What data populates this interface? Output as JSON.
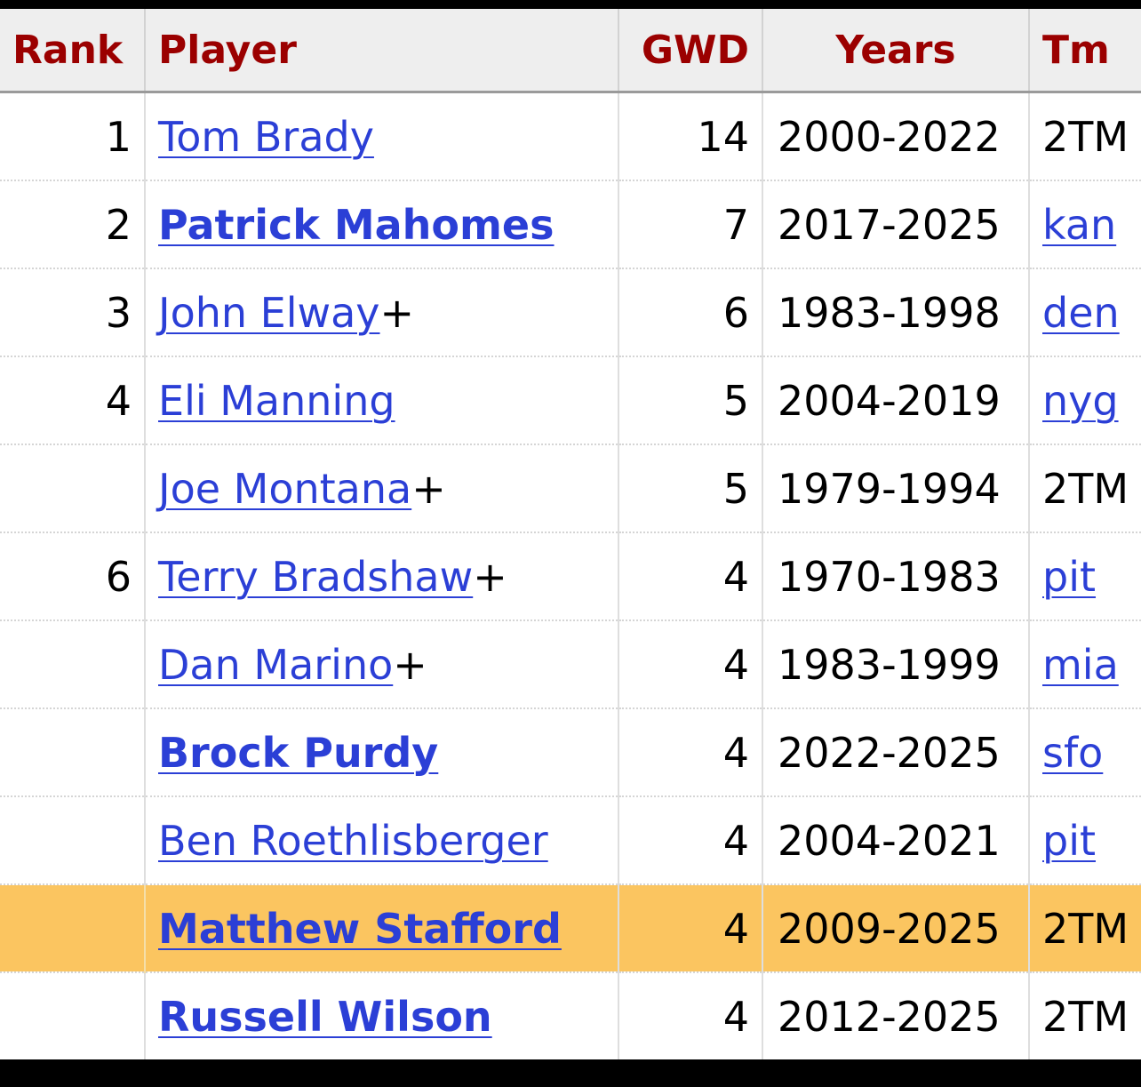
{
  "columns": {
    "rank": "Rank",
    "player": "Player",
    "gwd": "GWD",
    "years": "Years",
    "tm": "Tm"
  },
  "colors": {
    "header_text": "#9b0000",
    "link": "#2b3fd6",
    "highlight_row": "#fbc560",
    "header_bg": "#eeeeee"
  },
  "rows": [
    {
      "rank": "1",
      "player": "Tom Brady",
      "bold": false,
      "suffix": "",
      "gwd": "14",
      "years": "2000-2022",
      "tm": "2TM",
      "tm_link": false,
      "highlight": false
    },
    {
      "rank": "2",
      "player": "Patrick Mahomes",
      "bold": true,
      "suffix": "",
      "gwd": "7",
      "years": "2017-2025",
      "tm": "kan",
      "tm_link": true,
      "highlight": false
    },
    {
      "rank": "3",
      "player": "John Elway",
      "bold": false,
      "suffix": "+",
      "gwd": "6",
      "years": "1983-1998",
      "tm": "den",
      "tm_link": true,
      "highlight": false
    },
    {
      "rank": "4",
      "player": "Eli Manning",
      "bold": false,
      "suffix": "",
      "gwd": "5",
      "years": "2004-2019",
      "tm": "nyg",
      "tm_link": true,
      "highlight": false
    },
    {
      "rank": "",
      "player": "Joe Montana",
      "bold": false,
      "suffix": "+",
      "gwd": "5",
      "years": "1979-1994",
      "tm": "2TM",
      "tm_link": false,
      "highlight": false
    },
    {
      "rank": "6",
      "player": "Terry Bradshaw",
      "bold": false,
      "suffix": "+",
      "gwd": "4",
      "years": "1970-1983",
      "tm": "pit",
      "tm_link": true,
      "highlight": false
    },
    {
      "rank": "",
      "player": "Dan Marino",
      "bold": false,
      "suffix": "+",
      "gwd": "4",
      "years": "1983-1999",
      "tm": "mia",
      "tm_link": true,
      "highlight": false
    },
    {
      "rank": "",
      "player": "Brock Purdy",
      "bold": true,
      "suffix": "",
      "gwd": "4",
      "years": "2022-2025",
      "tm": "sfo",
      "tm_link": true,
      "highlight": false
    },
    {
      "rank": "",
      "player": "Ben Roethlisberger",
      "bold": false,
      "suffix": "",
      "gwd": "4",
      "years": "2004-2021",
      "tm": "pit",
      "tm_link": true,
      "highlight": false
    },
    {
      "rank": "",
      "player": "Matthew Stafford",
      "bold": true,
      "suffix": "",
      "gwd": "4",
      "years": "2009-2025",
      "tm": "2TM",
      "tm_link": false,
      "highlight": true
    },
    {
      "rank": "",
      "player": "Russell Wilson",
      "bold": true,
      "suffix": "",
      "gwd": "4",
      "years": "2012-2025",
      "tm": "2TM",
      "tm_link": false,
      "highlight": false
    }
  ]
}
